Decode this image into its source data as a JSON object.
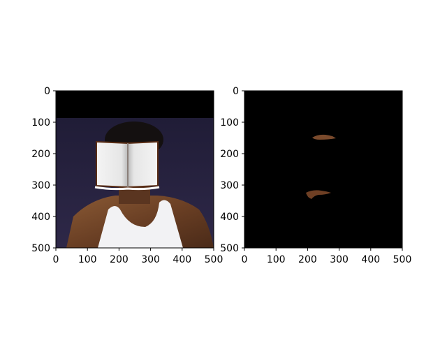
{
  "figure": {
    "panels": [
      {
        "name": "left-panel",
        "x_ticks": [
          "0",
          "100",
          "200",
          "300",
          "400",
          "500"
        ],
        "y_ticks": [
          "0",
          "100",
          "200",
          "300",
          "400",
          "500"
        ],
        "xlim": [
          0,
          500
        ],
        "ylim": [
          0,
          500
        ],
        "content": "photo of a person in a white tank top with an open book pasted over the face; black band across the top"
      },
      {
        "name": "right-panel",
        "x_ticks": [
          "0",
          "100",
          "200",
          "300",
          "400",
          "500"
        ],
        "y_ticks": [
          "0",
          "100",
          "200",
          "300",
          "400",
          "500"
        ],
        "xlim": [
          0,
          500
        ],
        "ylim": [
          0,
          500
        ],
        "content": "black mask image showing two small brown skin-tone regions"
      }
    ]
  }
}
